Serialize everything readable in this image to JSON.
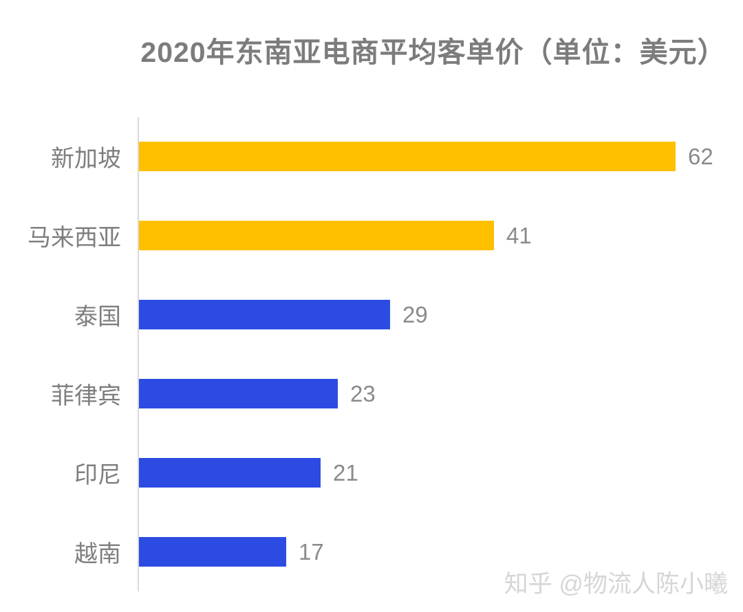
{
  "title": "2020年东南亚电商平均客单价（单位：美元）",
  "watermark": {
    "text": "知乎 @物流人陈小曦"
  },
  "colors": {
    "gold": "#FFC000",
    "blue": "#2C4BE2",
    "axis_line": "#D9D9D9",
    "title_text": "#7C7C7C",
    "category_text": "#7E7E7E",
    "value_text": "#8A8A8A",
    "watermark_text": "#D6D6D6"
  },
  "chart_data": {
    "type": "bar",
    "orientation": "horizontal",
    "title": "2020年东南亚电商平均客单价（单位：美元）",
    "unit": "美元",
    "categories": [
      "新加坡",
      "马来西亚",
      "泰国",
      "菲律宾",
      "印尼",
      "越南"
    ],
    "values": [
      62,
      41,
      29,
      23,
      21,
      17
    ],
    "bar_colors": [
      "gold",
      "gold",
      "blue",
      "blue",
      "blue",
      "blue"
    ],
    "data_labels_shown": true,
    "grid": false,
    "legend": false,
    "xlim": [
      0,
      68
    ]
  }
}
